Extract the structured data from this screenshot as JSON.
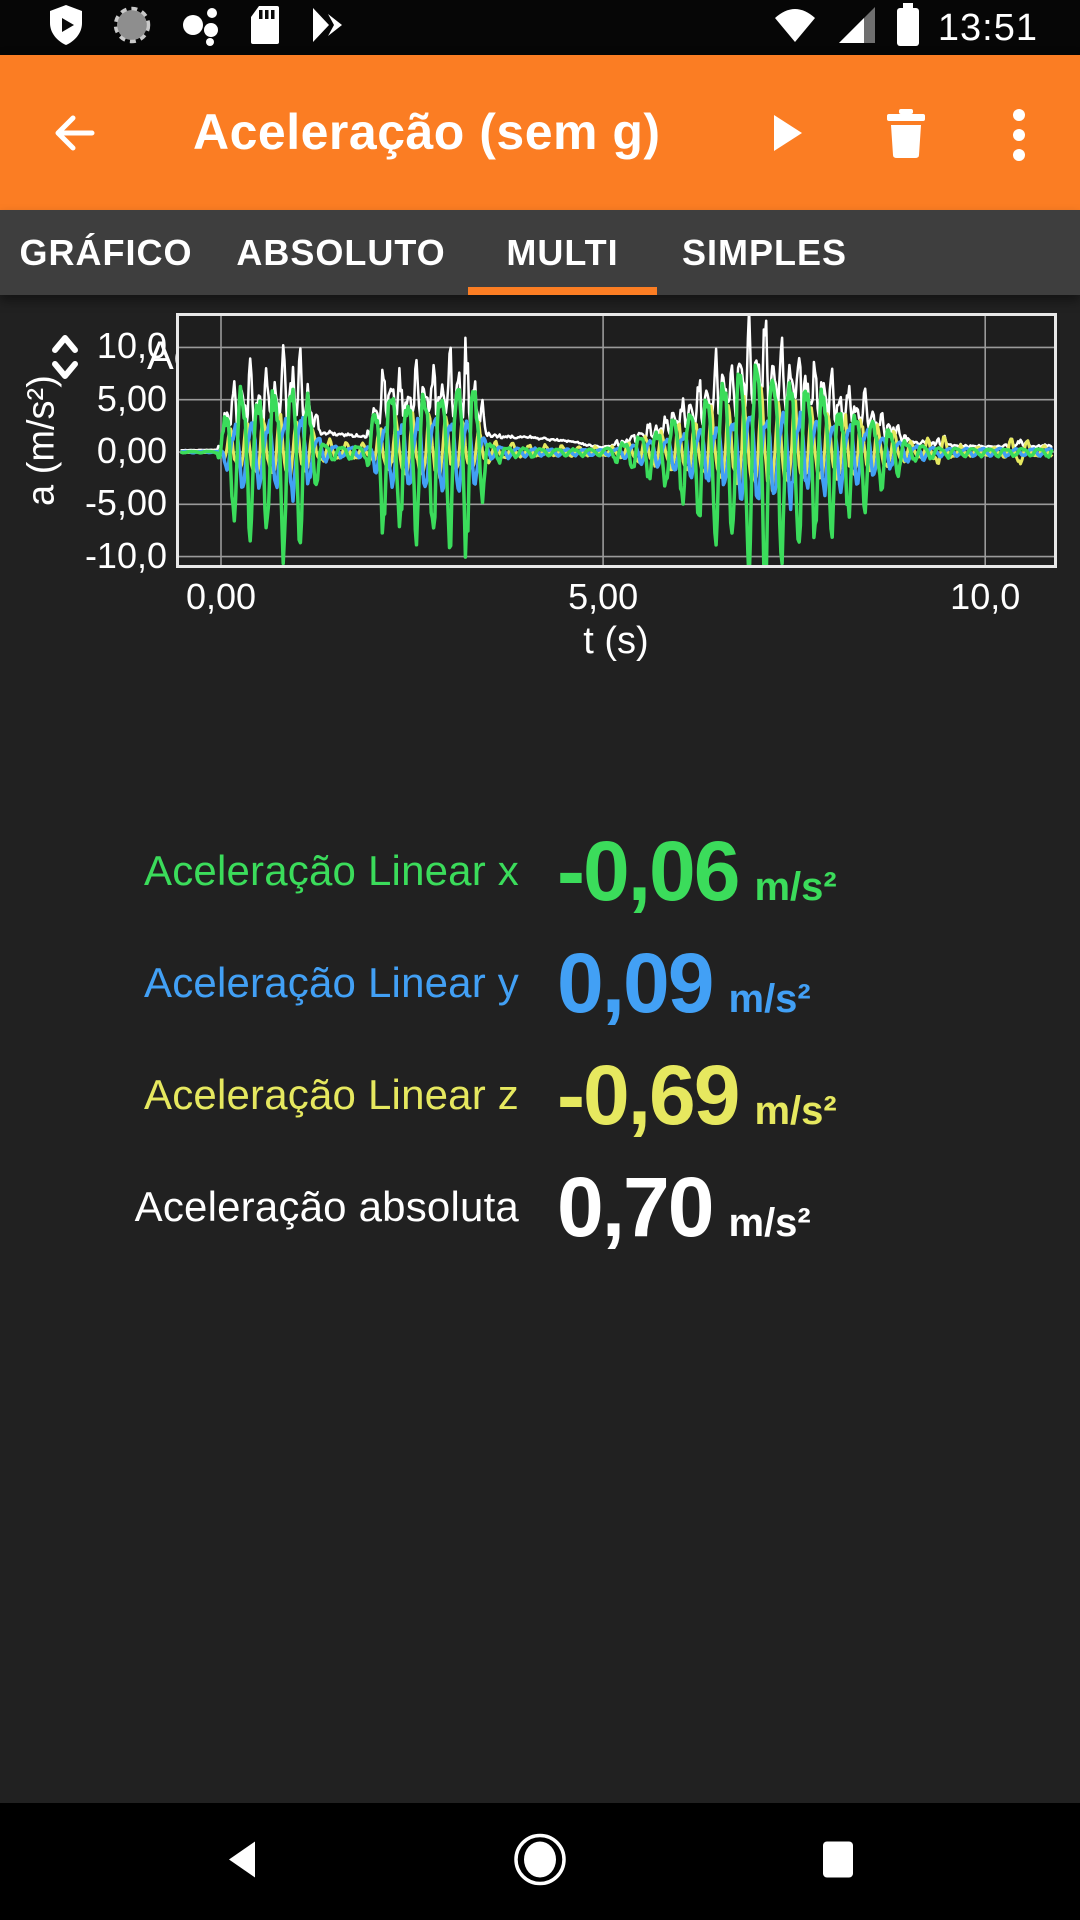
{
  "status_bar": {
    "time": "13:51",
    "left_icons": [
      "play-protect",
      "downloading",
      "assistant-dots",
      "sd-card",
      "play-store"
    ],
    "right_icons": [
      "wifi-full",
      "cell-signal-partial",
      "battery-full"
    ]
  },
  "app_bar": {
    "title": "Aceleração (sem g)",
    "accent_color": "#FB7D23",
    "actions": [
      "play",
      "delete",
      "more-options"
    ]
  },
  "tabs": {
    "items": [
      {
        "label": "GRÁFICO",
        "active": false
      },
      {
        "label": "ABSOLUTO",
        "active": false
      },
      {
        "label": "MULTI",
        "active": true
      },
      {
        "label": "SIMPLES",
        "active": false
      }
    ]
  },
  "chart": {
    "title": "Aceleração"
  },
  "chart_data": {
    "type": "line",
    "title": "Aceleração",
    "xlabel": "t (s)",
    "ylabel": "a (m/s²)",
    "xlim": [
      -0.55,
      10.9
    ],
    "ylim": [
      -10.8,
      13.0
    ],
    "xticks": [
      0,
      5,
      10
    ],
    "xtick_labels": [
      "0,00",
      "5,00",
      "10,0"
    ],
    "yticks": [
      10,
      5,
      0,
      -5,
      -10
    ],
    "ytick_labels": [
      "10,0",
      "5,00",
      "0,00",
      "-5,00",
      "-10,0"
    ],
    "grid": true,
    "grid_color": "#9A9A9A",
    "legend": "none",
    "description": "Three oscillatory acceleration bursts (~0-1.3 s, ~2-3.5 s, ~5.1-9 s) on x/y/z axes plus absolute magnitude; peak ~12 m/s²",
    "reconstruction": {
      "dt": 0.016,
      "jitter_min": 0.72,
      "jitter_span": 0.38,
      "noise": 0.08,
      "seed": 11
    },
    "series": [
      {
        "name": "Aceleração Linear x",
        "color": "#3BDC5B",
        "width": 3.5,
        "hz": 4.6,
        "phase": 0.0,
        "h2": 0.25,
        "envelope": [
          [
            -0.55,
            0.06
          ],
          [
            -0.05,
            0.08
          ],
          [
            0.05,
            4.5
          ],
          [
            0.2,
            7.0
          ],
          [
            0.45,
            6.0
          ],
          [
            0.7,
            7.5
          ],
          [
            0.95,
            8.0
          ],
          [
            1.15,
            6.0
          ],
          [
            1.3,
            1.2
          ],
          [
            1.5,
            0.6
          ],
          [
            1.9,
            0.7
          ],
          [
            2.0,
            5.0
          ],
          [
            2.2,
            7.5
          ],
          [
            2.5,
            6.5
          ],
          [
            2.8,
            8.0
          ],
          [
            3.1,
            8.5
          ],
          [
            3.35,
            7.0
          ],
          [
            3.5,
            1.0
          ],
          [
            3.8,
            0.5
          ],
          [
            4.3,
            0.35
          ],
          [
            5.0,
            0.3
          ],
          [
            5.3,
            1.2
          ],
          [
            5.7,
            2.5
          ],
          [
            6.1,
            4.5
          ],
          [
            6.5,
            7.0
          ],
          [
            6.9,
            9.5
          ],
          [
            7.15,
            10.8
          ],
          [
            7.45,
            8.5
          ],
          [
            7.8,
            7.0
          ],
          [
            8.1,
            5.5
          ],
          [
            8.45,
            4.0
          ],
          [
            8.8,
            2.0
          ],
          [
            9.05,
            0.8
          ],
          [
            9.4,
            0.45
          ],
          [
            10.0,
            0.35
          ],
          [
            10.9,
            0.4
          ]
        ]
      },
      {
        "name": "Aceleração Linear y",
        "color": "#42A0F5",
        "width": 3.5,
        "hz": 4.6,
        "phase": 2.7,
        "h2": 0.2,
        "envelope": [
          [
            -0.55,
            0.05
          ],
          [
            0.0,
            0.06
          ],
          [
            0.1,
            2.2
          ],
          [
            0.3,
            3.2
          ],
          [
            0.7,
            3.6
          ],
          [
            1.0,
            3.8
          ],
          [
            1.2,
            2.5
          ],
          [
            1.35,
            0.8
          ],
          [
            1.6,
            0.5
          ],
          [
            1.95,
            0.5
          ],
          [
            2.1,
            2.8
          ],
          [
            2.5,
            3.4
          ],
          [
            2.9,
            3.6
          ],
          [
            3.3,
            3.2
          ],
          [
            3.5,
            0.7
          ],
          [
            3.9,
            0.4
          ],
          [
            4.5,
            0.3
          ],
          [
            5.1,
            0.3
          ],
          [
            5.5,
            1.0
          ],
          [
            6.0,
            2.0
          ],
          [
            6.5,
            3.2
          ],
          [
            7.0,
            4.2
          ],
          [
            7.3,
            4.3
          ],
          [
            7.7,
            3.6
          ],
          [
            8.2,
            3.0
          ],
          [
            8.6,
            2.0
          ],
          [
            9.0,
            0.8
          ],
          [
            9.4,
            0.4
          ],
          [
            10.9,
            0.35
          ]
        ]
      },
      {
        "name": "Aceleração Linear z",
        "color": "#E6E85F",
        "width": 3.0,
        "hz": 4.6,
        "phase": 4.4,
        "h2": 0.3,
        "envelope": [
          [
            -0.55,
            0.05
          ],
          [
            0.0,
            0.07
          ],
          [
            0.1,
            1.8
          ],
          [
            0.4,
            2.6
          ],
          [
            0.8,
            2.8
          ],
          [
            1.1,
            2.4
          ],
          [
            1.3,
            1.0
          ],
          [
            1.6,
            0.8
          ],
          [
            1.95,
            0.7
          ],
          [
            2.1,
            2.2
          ],
          [
            2.6,
            2.8
          ],
          [
            3.0,
            2.6
          ],
          [
            3.4,
            2.2
          ],
          [
            3.55,
            0.9
          ],
          [
            3.9,
            0.6
          ],
          [
            4.5,
            0.5
          ],
          [
            5.1,
            0.4
          ],
          [
            5.6,
            1.4
          ],
          [
            6.1,
            2.4
          ],
          [
            6.6,
            3.4
          ],
          [
            7.05,
            4.2
          ],
          [
            7.4,
            3.8
          ],
          [
            7.9,
            3.2
          ],
          [
            8.4,
            2.6
          ],
          [
            8.8,
            1.6
          ],
          [
            9.1,
            0.7
          ],
          [
            9.45,
            1.4
          ],
          [
            9.6,
            0.5
          ],
          [
            10.2,
            0.4
          ],
          [
            10.45,
            1.5
          ],
          [
            10.6,
            0.5
          ],
          [
            10.9,
            0.6
          ]
        ]
      },
      {
        "name": "Aceleração absoluta",
        "color": "#FFFFFF",
        "width": 2.5,
        "derived": "magnitude",
        "bias_envelope": [
          [
            -0.55,
            0.15
          ],
          [
            0.0,
            0.2
          ],
          [
            1.25,
            1.4
          ],
          [
            1.55,
            1.5
          ],
          [
            1.9,
            1.3
          ],
          [
            3.5,
            1.2
          ],
          [
            4.0,
            1.3
          ],
          [
            4.6,
            0.9
          ],
          [
            4.95,
            0.25
          ],
          [
            5.4,
            0.4
          ],
          [
            9.1,
            0.35
          ],
          [
            9.8,
            0.3
          ],
          [
            10.9,
            0.3
          ]
        ]
      }
    ]
  },
  "readings": [
    {
      "label": "Aceleração Linear x",
      "value": "-0,06",
      "unit": "m/s²",
      "color": "#3BDC5B"
    },
    {
      "label": "Aceleração Linear y",
      "value": "0,09",
      "unit": "m/s²",
      "color": "#42A0F5"
    },
    {
      "label": "Aceleração Linear z",
      "value": "-0,69",
      "unit": "m/s²",
      "color": "#E6E85F"
    },
    {
      "label": "Aceleração absoluta",
      "value": "0,70",
      "unit": "m/s²",
      "color": "#FFFFFF"
    }
  ],
  "nav_bar": {
    "buttons": [
      "back",
      "home",
      "recents"
    ]
  }
}
